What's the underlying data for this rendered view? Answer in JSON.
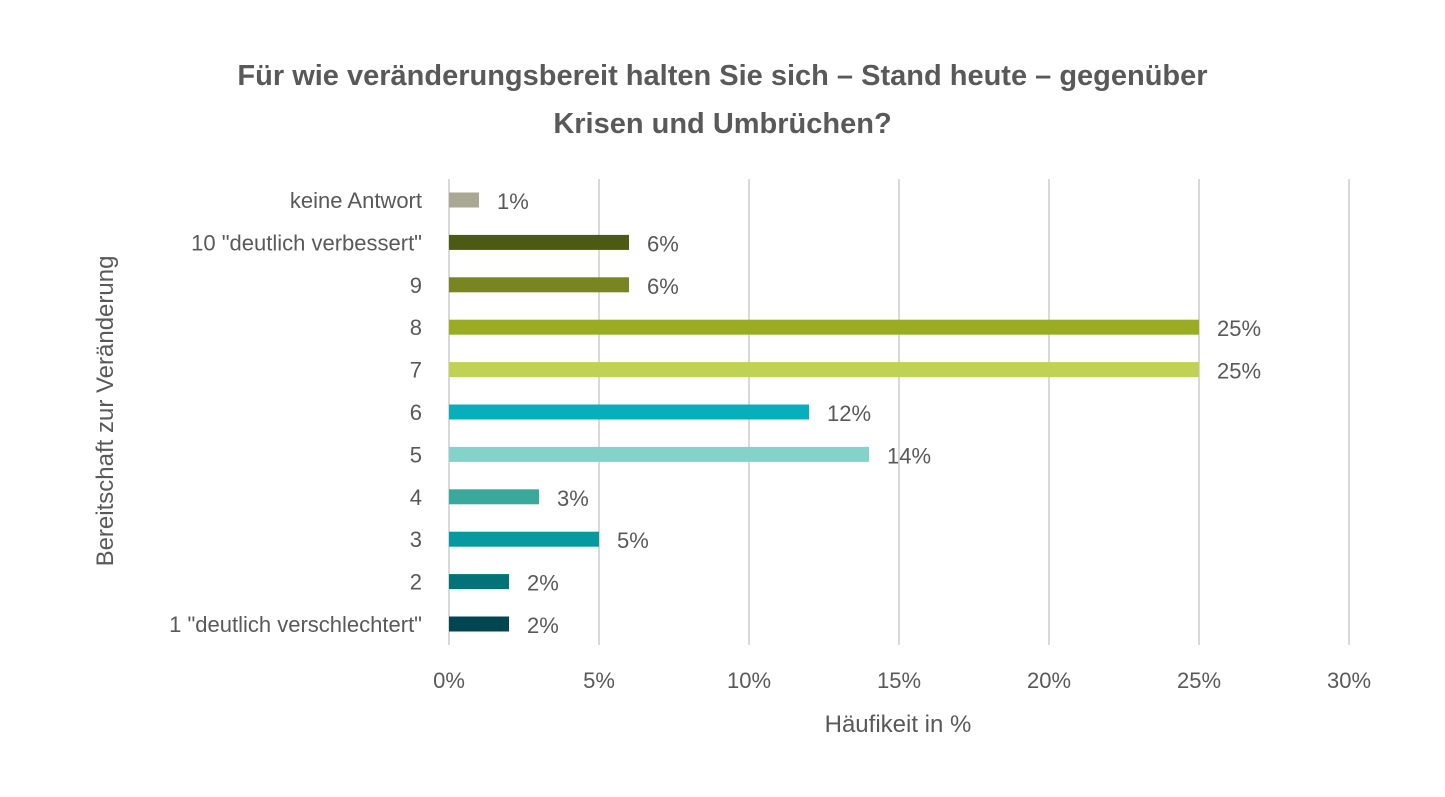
{
  "chart_data": {
    "type": "bar",
    "orientation": "horizontal",
    "title_lines": [
      "Für wie veränderungsbereit halten Sie sich – Stand heute – gegenüber",
      "Krisen und Umbrüchen?"
    ],
    "xlabel": "Häufikeit in %",
    "ylabel": "Bereitschaft zur Veränderung",
    "xlim": [
      0,
      30
    ],
    "x_ticks": [
      "0%",
      "5%",
      "10%",
      "15%",
      "20%",
      "25%",
      "30%"
    ],
    "grid": "vertical",
    "legend": "none",
    "categories": [
      "keine Antwort",
      "10 \"deutlich verbessert\"",
      "9",
      "8",
      "7",
      "6",
      "5",
      "4",
      "3",
      "2",
      "1 \"deutlich verschlechtert\""
    ],
    "values": [
      1,
      6,
      6,
      25,
      25,
      12,
      14,
      3,
      5,
      2,
      2
    ],
    "data_labels": [
      "1%",
      "6%",
      "6%",
      "25%",
      "25%",
      "12%",
      "14%",
      "3%",
      "5%",
      "2%",
      "2%"
    ],
    "colors": [
      "#A9A894",
      "#4C5A12",
      "#788520",
      "#9AAC23",
      "#BFD256",
      "#07AEBB",
      "#84D2C9",
      "#3BA89C",
      "#06999F",
      "#037279",
      "#014651"
    ]
  }
}
